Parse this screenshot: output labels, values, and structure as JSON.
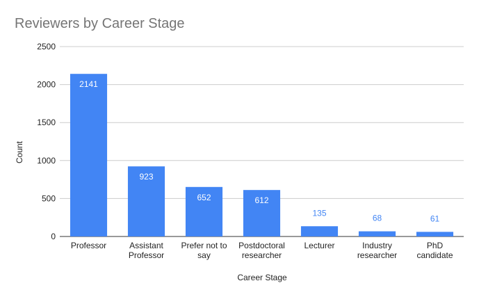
{
  "chart_data": {
    "type": "bar",
    "title": "Reviewers by Career Stage",
    "xlabel": "Career Stage",
    "ylabel": "Count",
    "ylim": [
      0,
      2500
    ],
    "yticks": [
      0,
      500,
      1000,
      1500,
      2000,
      2500
    ],
    "categories": [
      [
        "Professor"
      ],
      [
        "Assistant",
        "Professor"
      ],
      [
        "Prefer not to",
        "say"
      ],
      [
        "Postdoctoral",
        "researcher"
      ],
      [
        "Lecturer"
      ],
      [
        "Industry",
        "researcher"
      ],
      [
        "PhD",
        "candidate"
      ]
    ],
    "values": [
      2141,
      923,
      652,
      612,
      135,
      68,
      61
    ],
    "grid": true,
    "legend": "none",
    "colors": {
      "bar": "#4285f4",
      "label_inside": "#ffffff",
      "label_outside": "#4285f4"
    }
  }
}
